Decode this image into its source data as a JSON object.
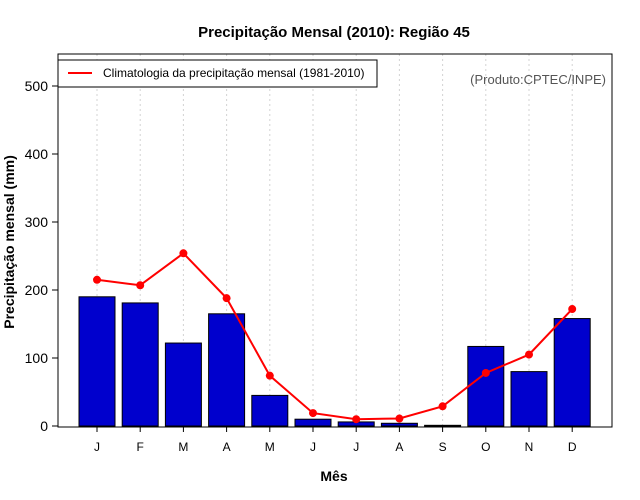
{
  "chart_data": {
    "type": "bar",
    "title": "Precipitação Mensal (2010): Região 45",
    "xlabel": "Mês",
    "ylabel": "Precipitação mensal (mm)",
    "categories": [
      "J",
      "F",
      "M",
      "A",
      "M",
      "J",
      "J",
      "A",
      "S",
      "O",
      "N",
      "D"
    ],
    "ylim": [
      0,
      540
    ],
    "yticks": [
      0,
      100,
      200,
      300,
      400,
      500
    ],
    "grid": "vertical-dotted",
    "series": [
      {
        "name": "Precipitação mensal (2010)",
        "kind": "bar",
        "color": "#0000cd",
        "values": [
          190,
          181,
          122,
          165,
          45,
          10,
          6,
          4,
          1,
          117,
          80,
          158
        ]
      },
      {
        "name": "Climatologia da precipitação mensal (1981-2010)",
        "kind": "line",
        "color": "#ff0000",
        "values": [
          215,
          207,
          254,
          188,
          74,
          19,
          10,
          11,
          29,
          78,
          105,
          172
        ]
      }
    ],
    "legend": {
      "position": "top-left",
      "entries": [
        "Climatologia da precipitação mensal (1981-2010)"
      ]
    },
    "annotation": "(Produto:CPTEC/INPE)"
  }
}
